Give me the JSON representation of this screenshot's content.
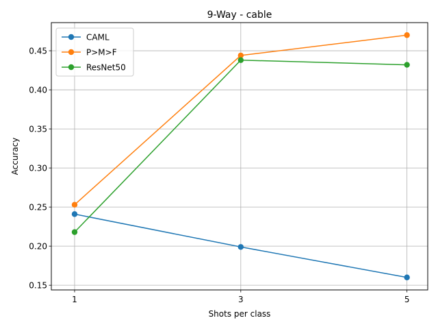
{
  "chart_data": {
    "type": "line",
    "title": "9-Way - cable",
    "xlabel": "Shots per class",
    "ylabel": "Accuracy",
    "x": [
      1,
      3,
      5
    ],
    "x_ticks": [
      "1",
      "3",
      "5"
    ],
    "y_ticks": [
      "0.15",
      "0.20",
      "0.25",
      "0.30",
      "0.35",
      "0.40",
      "0.45"
    ],
    "xlim": [
      0.72,
      5.25
    ],
    "ylim": [
      0.144,
      0.486
    ],
    "grid": true,
    "legend_position": "upper-left",
    "series": [
      {
        "name": "CAML",
        "color": "#1f77b4",
        "values": [
          0.241,
          0.199,
          0.16
        ]
      },
      {
        "name": "P>M>F",
        "color": "#ff7f0e",
        "values": [
          0.253,
          0.444,
          0.47
        ]
      },
      {
        "name": "ResNet50",
        "color": "#2ca02c",
        "values": [
          0.218,
          0.438,
          0.432
        ]
      }
    ]
  }
}
